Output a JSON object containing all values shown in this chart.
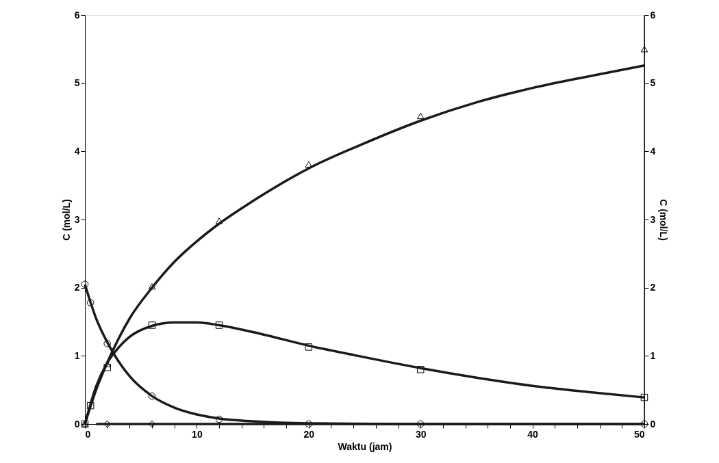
{
  "chart_data": {
    "type": "scatter",
    "xlabel": "Waktu (jam)",
    "ylabel": "C (mol/L)",
    "y2label": "C (mol/L)",
    "xlim": [
      0,
      50
    ],
    "ylim": [
      0,
      6
    ],
    "y2lim": [
      0,
      6
    ],
    "xticks": [
      0,
      {
        "value": 2,
        "label": null
      },
      {
        "value": 4,
        "label": null
      },
      {
        "value": 6,
        "label": null
      },
      {
        "value": 8,
        "label": null
      },
      10,
      {
        "value": 12,
        "label": null
      },
      {
        "value": 14,
        "label": null
      },
      {
        "value": 16,
        "label": null
      },
      {
        "value": 18,
        "label": null
      },
      20,
      {
        "value": 22,
        "label": null
      },
      {
        "value": 24,
        "label": null
      },
      {
        "value": 26,
        "label": null
      },
      {
        "value": 28,
        "label": null
      },
      30,
      {
        "value": 32,
        "label": null
      },
      {
        "value": 34,
        "label": null
      },
      {
        "value": 36,
        "label": null
      },
      {
        "value": 38,
        "label": null
      },
      40,
      {
        "value": 42,
        "label": null
      },
      {
        "value": 44,
        "label": null
      },
      {
        "value": 46,
        "label": null
      },
      {
        "value": 48,
        "label": null
      },
      50
    ],
    "yticks": [
      0,
      1,
      2,
      3,
      4,
      5,
      6
    ],
    "y2ticks": [
      0,
      1,
      2,
      3,
      4,
      5,
      6
    ],
    "grid": false,
    "series": [
      {
        "type": "scatter",
        "marker": "circle",
        "color": "#000000",
        "x": [
          0,
          0.5,
          2,
          6,
          12,
          20,
          30,
          50
        ],
        "values": [
          2.05,
          1.78,
          1.18,
          0.41,
          0.07,
          0,
          0,
          0
        ]
      },
      {
        "type": "scatter",
        "marker": "square",
        "color": "#000000",
        "x": [
          0,
          0.5,
          2,
          6,
          12,
          20,
          30,
          50
        ],
        "values": [
          0,
          0.27,
          0.83,
          1.45,
          1.45,
          1.13,
          0.8,
          0.39
        ]
      },
      {
        "type": "scatter",
        "marker": "triangle",
        "color": "#000000",
        "x": [
          0,
          2,
          6,
          12,
          20,
          30,
          50
        ],
        "values": [
          0,
          0.88,
          2.02,
          2.98,
          3.81,
          4.52,
          5.5
        ]
      },
      {
        "type": "scatter",
        "marker": "diamond",
        "color": "#000000",
        "x": [
          0,
          2,
          6
        ],
        "values": [
          0,
          0,
          0
        ]
      },
      {
        "type": "line",
        "color": "#1a1a1a",
        "x": [
          0,
          1,
          2,
          3,
          4,
          6,
          8,
          10,
          12,
          15,
          20,
          30,
          50
        ],
        "values": [
          2.05,
          1.55,
          1.2,
          0.92,
          0.7,
          0.41,
          0.24,
          0.14,
          0.08,
          0.04,
          0.01,
          0,
          0
        ]
      },
      {
        "type": "line",
        "color": "#1a1a1a",
        "x": [
          0,
          1,
          2,
          3,
          4,
          6,
          8,
          10,
          12,
          15,
          20,
          25,
          30,
          35,
          40,
          45,
          50
        ],
        "values": [
          0,
          0.55,
          0.9,
          1.12,
          1.28,
          1.44,
          1.49,
          1.49,
          1.45,
          1.35,
          1.15,
          0.98,
          0.82,
          0.68,
          0.56,
          0.47,
          0.39
        ]
      },
      {
        "type": "line",
        "color": "#1a1a1a",
        "x": [
          0,
          1,
          2,
          3,
          4,
          6,
          8,
          10,
          12,
          15,
          20,
          25,
          30,
          35,
          40,
          45,
          50
        ],
        "values": [
          0,
          0.5,
          0.9,
          1.25,
          1.55,
          2.0,
          2.38,
          2.68,
          2.94,
          3.27,
          3.75,
          4.12,
          4.45,
          4.72,
          4.93,
          5.1,
          5.26
        ]
      },
      {
        "type": "line",
        "color": "#1a1a1a",
        "x": [
          1,
          50
        ],
        "values": [
          0,
          0
        ]
      }
    ]
  }
}
